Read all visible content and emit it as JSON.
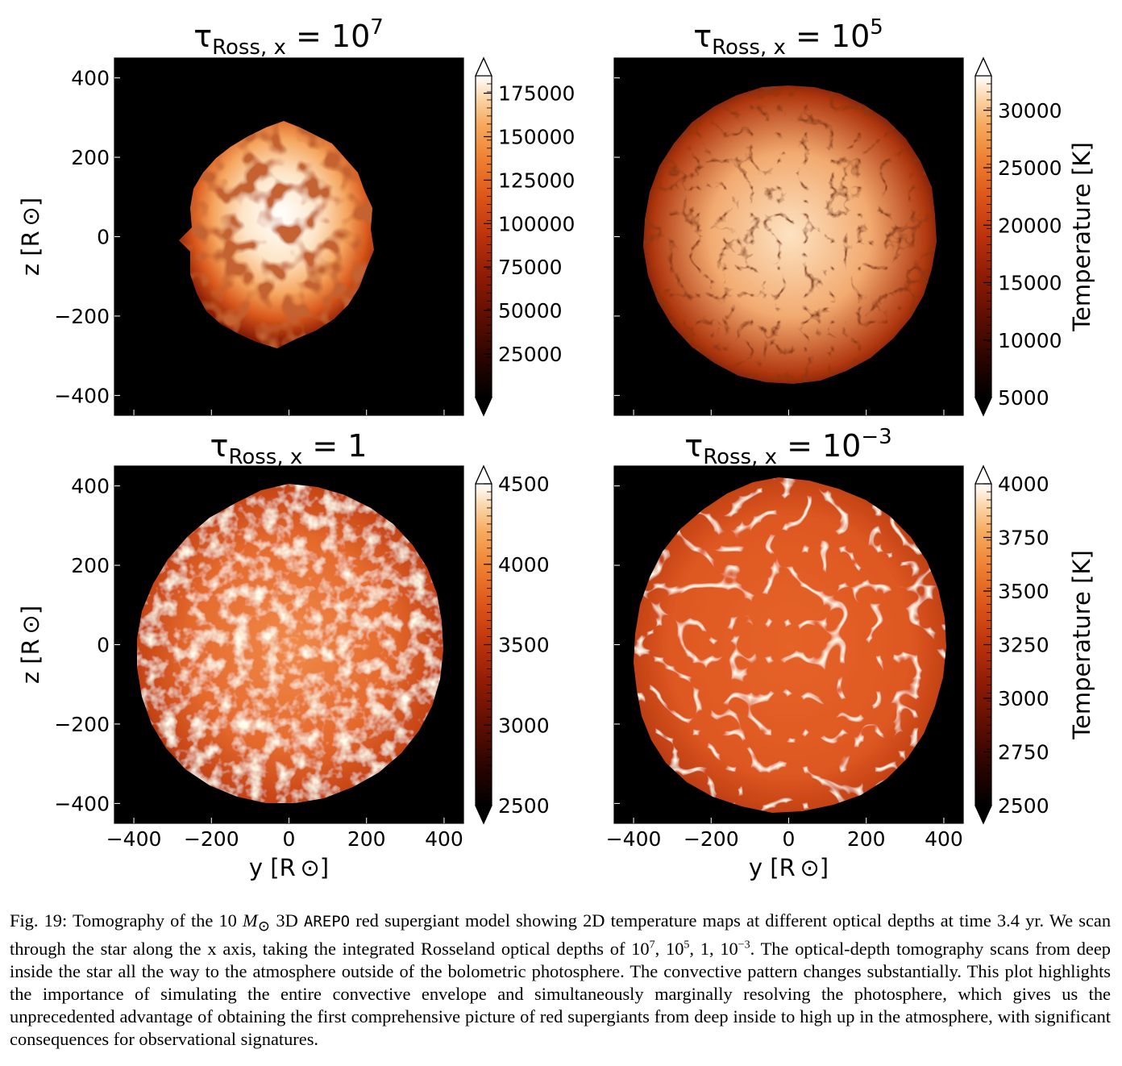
{
  "figure": {
    "panels": [
      {
        "title": {
          "prefix": "τ",
          "sub": "Ross, x",
          "eq": " = ",
          "value": "10",
          "exp": "7"
        },
        "cbar_ticks": [
          "175000",
          "150000",
          "125000",
          "100000",
          "75000",
          "50000",
          "25000"
        ],
        "cbar_min": 0,
        "cbar_max": 185000,
        "ylabel": "z [R ⊙]",
        "xlabel": "",
        "show_xticks": false,
        "show_yticks": true
      },
      {
        "title": {
          "prefix": "τ",
          "sub": "Ross, x",
          "eq": " = ",
          "value": "10",
          "exp": "5"
        },
        "cbar_ticks": [
          "30000",
          "25000",
          "20000",
          "15000",
          "10000",
          "5000"
        ],
        "cbar_min": 5000,
        "cbar_max": 33000,
        "cbar_label": "Temperature [K]",
        "ylabel": "",
        "xlabel": "",
        "show_xticks": false,
        "show_yticks": false
      },
      {
        "title": {
          "prefix": "τ",
          "sub": "Ross, x",
          "eq": " = ",
          "value": "1",
          "exp": ""
        },
        "cbar_ticks": [
          "4500",
          "4000",
          "3500",
          "3000",
          "2500"
        ],
        "cbar_min": 2500,
        "cbar_max": 4500,
        "ylabel": "z [R ⊙]",
        "xlabel": "y [R ⊙]",
        "show_xticks": true,
        "show_yticks": true
      },
      {
        "title": {
          "prefix": "τ",
          "sub": "Ross, x",
          "eq": " = ",
          "value": "10",
          "exp": "−3"
        },
        "cbar_ticks": [
          "4000",
          "3750",
          "3500",
          "3250",
          "3000",
          "2750",
          "2500"
        ],
        "cbar_min": 2500,
        "cbar_max": 4000,
        "cbar_label": "Temperature [K]",
        "ylabel": "",
        "xlabel": "y [R ⊙]",
        "show_xticks": true,
        "show_yticks": false
      }
    ],
    "axis_ticks": [
      "400",
      "200",
      "0",
      "−200",
      "−400"
    ],
    "x_ticks": [
      "−400",
      "−200",
      "0",
      "200",
      "400"
    ],
    "colormap": [
      "#000000",
      "#2a0400",
      "#5e0e02",
      "#8f1c05",
      "#bb320c",
      "#dc5418",
      "#ee8030",
      "#f6aa5e",
      "#fbd5a8",
      "#ffffff"
    ]
  },
  "caption": {
    "fig_label": "Fig. 19:",
    "part1": " Tomography of the 10 ",
    "mass_symbol": "M",
    "mass_sub": "⊙",
    "part2": " 3D ",
    "code": "AREPO",
    "part3": " red supergiant model showing 2D temperature maps at different optical depths at time 3.4 yr. We scan through the star along the x axis, taking the integrated Rosseland optical depths of 10",
    "exp_a": "7",
    "sep1": ", 10",
    "exp_b": "5",
    "sep2": ", 1, 10",
    "exp_c": "−3",
    "part4": ". The optical-depth tomography scans from deep inside the star all the way to the atmosphere outside of the bolometric photosphere. The convective pattern changes substantially. This plot highlights the importance of simulating the entire convective envelope and simultaneously marginally resolving the photosphere, which gives us the unprecedented advantage of obtaining the first comprehensive picture of red supergiants from deep inside to high up in the atmosphere, with significant consequences for observational signatures."
  }
}
